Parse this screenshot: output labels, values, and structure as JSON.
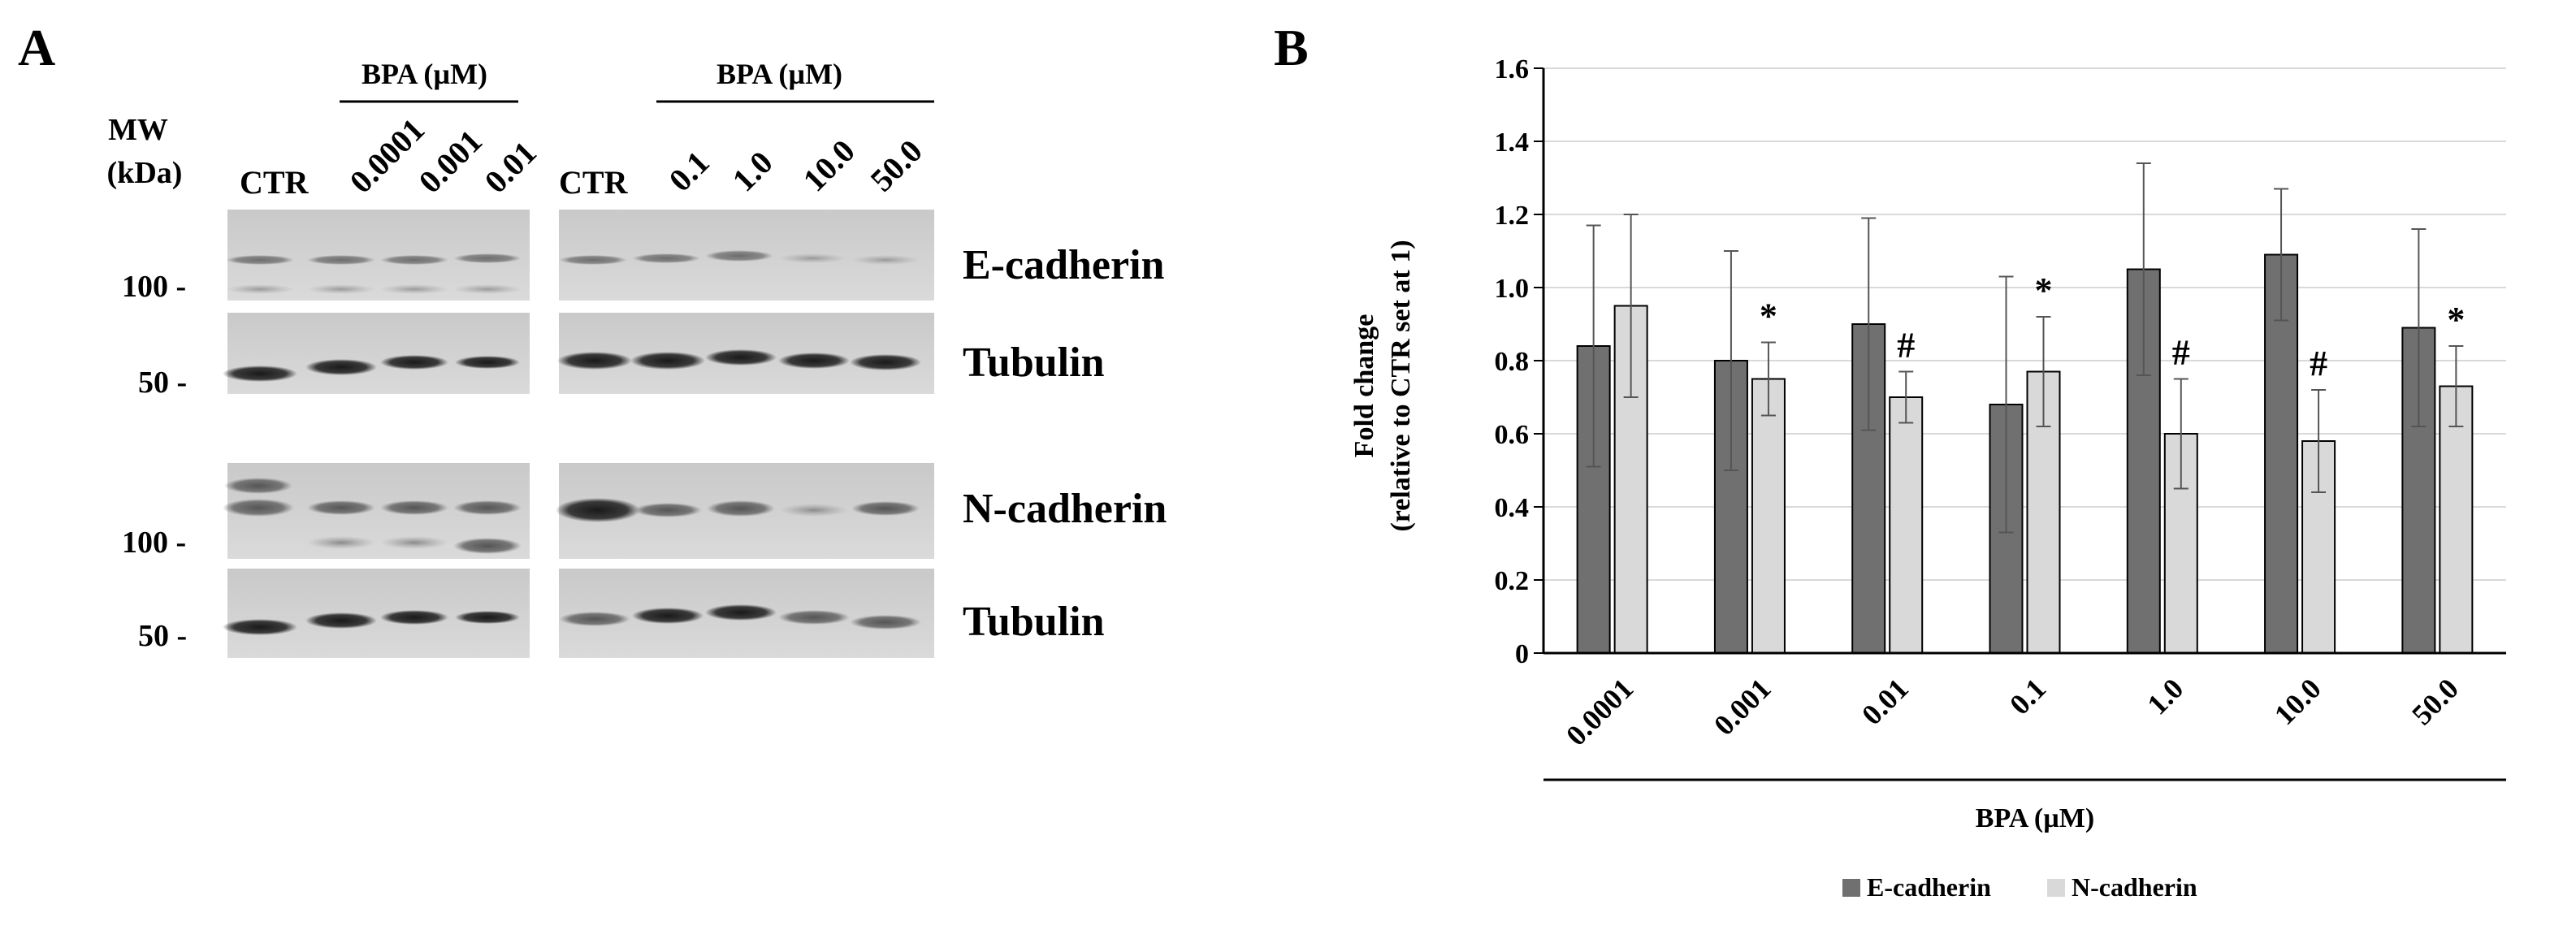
{
  "panel_a": {
    "label": "A",
    "mw_label_line1": "MW",
    "mw_label_line2": "(kDa)",
    "group_headers": [
      "BPA (µM)",
      "BPA (µM)"
    ],
    "left_lanes": [
      "CTR",
      "0.0001",
      "0.001",
      "0.01"
    ],
    "right_lanes": [
      "CTR",
      "0.1",
      "1.0",
      "10.0",
      "50.0"
    ],
    "blots": [
      {
        "protein": "E-cadherin",
        "marker": "100 -"
      },
      {
        "protein": "Tubulin",
        "marker": "50 -"
      },
      {
        "protein": "N-cadherin",
        "marker": "100 -"
      },
      {
        "protein": "Tubulin",
        "marker": "50 -"
      }
    ]
  },
  "panel_b": {
    "label": "B"
  },
  "colors": {
    "e_cadherin": "#707070",
    "n_cadherin": "#d9d9d9",
    "gridline": "#d9d9d9",
    "error_bar": "#555555"
  },
  "chart_data": {
    "type": "bar",
    "categories": [
      "0.0001",
      "0.001",
      "0.01",
      "0.1",
      "1.0",
      "10.0",
      "50.0"
    ],
    "series": [
      {
        "name": "E-cadherin",
        "values": [
          0.84,
          0.8,
          0.9,
          0.68,
          1.05,
          1.09,
          0.89
        ],
        "error": [
          0.33,
          0.3,
          0.29,
          0.35,
          0.29,
          0.18,
          0.27
        ]
      },
      {
        "name": "N-cadherin",
        "values": [
          0.95,
          0.75,
          0.7,
          0.77,
          0.6,
          0.58,
          0.73
        ],
        "error": [
          0.25,
          0.1,
          0.07,
          0.15,
          0.15,
          0.14,
          0.11
        ]
      }
    ],
    "significance": [
      "",
      "*",
      "#",
      "*",
      "#",
      "#",
      "*"
    ],
    "xlabel": "BPA (µM)",
    "ylabel_line1": "Fold change",
    "ylabel_line2": "(relative to CTR set at 1)",
    "ylim": [
      0,
      1.6
    ],
    "yticks": [
      "0",
      "0.2",
      "0.4",
      "0.6",
      "0.8",
      "1.0",
      "1.2",
      "1.4",
      "1.6"
    ],
    "grid": true,
    "legend_position": "bottom"
  }
}
